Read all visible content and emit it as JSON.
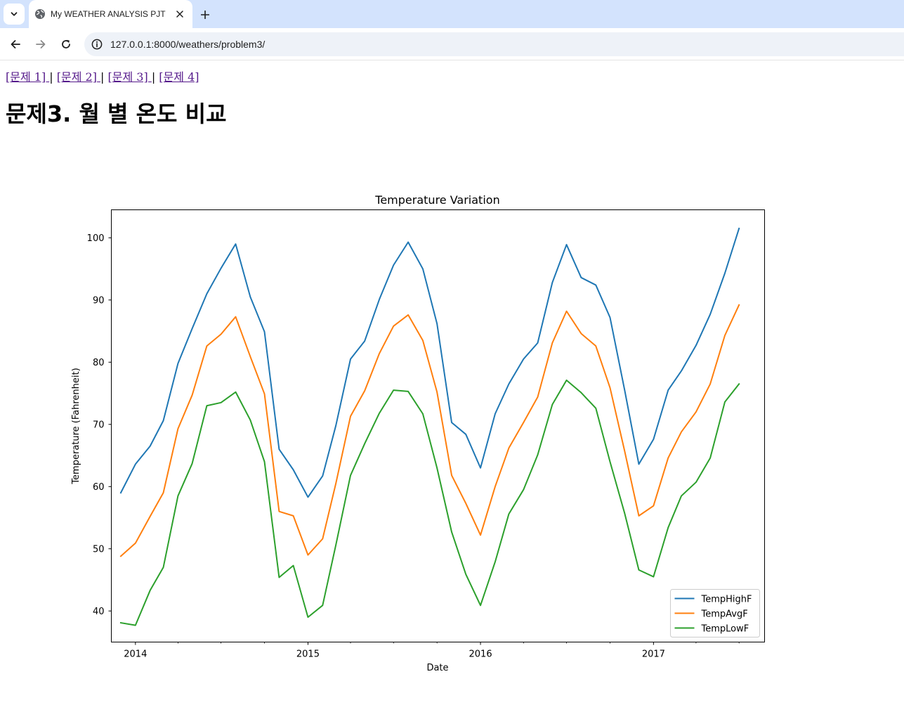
{
  "browser": {
    "tab_title": "My WEATHER ANALYSIS PJT",
    "url": "127.0.0.1:8000/weathers/problem3/",
    "icons": {
      "tab_menu": "chevron-down-icon",
      "favicon": "globe-icon",
      "close": "close-icon",
      "new_tab": "plus-icon",
      "back": "arrow-left-icon",
      "forward": "arrow-right-icon",
      "reload": "reload-icon",
      "site_info": "info-icon"
    }
  },
  "nav": {
    "links": [
      "[문제 1] ",
      "[문제 2] ",
      "[문제 3] ",
      "[문제 4]"
    ],
    "separator": " | "
  },
  "page": {
    "title": "문제3. 월 별 온도 비교"
  },
  "chart_data": {
    "type": "line",
    "title": "Temperature Variation",
    "xlabel": "Date",
    "ylabel": "Temperature (Fahrenheit)",
    "ylim": [
      35,
      104.5
    ],
    "yticks": [
      40,
      50,
      60,
      70,
      80,
      90,
      100
    ],
    "xlim": [
      "2013-11-11",
      "2017-08-24"
    ],
    "xticks": [
      "2014-01-01",
      "2015-01-01",
      "2016-01-01",
      "2017-01-01"
    ],
    "xtick_labels": [
      "2014",
      "2015",
      "2016",
      "2017"
    ],
    "legend": "lower-right",
    "grid": false,
    "x": [
      "2013-12-01",
      "2014-01-01",
      "2014-02-01",
      "2014-03-01",
      "2014-04-01",
      "2014-05-01",
      "2014-06-01",
      "2014-07-01",
      "2014-08-01",
      "2014-09-01",
      "2014-10-01",
      "2014-11-01",
      "2014-12-01",
      "2015-01-01",
      "2015-02-01",
      "2015-03-01",
      "2015-04-01",
      "2015-05-01",
      "2015-06-01",
      "2015-07-01",
      "2015-08-01",
      "2015-09-01",
      "2015-10-01",
      "2015-11-01",
      "2015-12-01",
      "2016-01-01",
      "2016-02-01",
      "2016-03-01",
      "2016-04-01",
      "2016-05-01",
      "2016-06-01",
      "2016-07-01",
      "2016-08-01",
      "2016-09-01",
      "2016-10-01",
      "2016-11-01",
      "2016-12-01",
      "2017-01-01",
      "2017-02-01",
      "2017-03-01",
      "2017-04-01",
      "2017-05-01",
      "2017-06-01",
      "2017-07-01"
    ],
    "series": [
      {
        "name": "TempHighF",
        "color": "#1f77b4",
        "values": [
          59.0,
          63.6,
          66.5,
          70.6,
          79.8,
          85.4,
          91.0,
          95.1,
          99.0,
          90.5,
          84.9,
          66.0,
          62.7,
          58.3,
          61.7,
          69.8,
          80.5,
          83.4,
          90.1,
          95.6,
          99.3,
          95.0,
          86.2,
          70.3,
          68.4,
          63.0,
          71.7,
          76.5,
          80.5,
          83.1,
          92.8,
          98.9,
          93.6,
          92.4,
          87.2,
          75.5,
          63.6,
          67.6,
          75.5,
          78.6,
          82.7,
          87.7,
          94.3,
          101.5
        ]
      },
      {
        "name": "TempAvgF",
        "color": "#ff7f0e",
        "values": [
          48.8,
          50.9,
          55.2,
          59.0,
          69.3,
          74.7,
          82.6,
          84.5,
          87.3,
          80.9,
          74.9,
          56.0,
          55.3,
          49.0,
          51.6,
          60.5,
          71.3,
          75.4,
          81.4,
          85.8,
          87.6,
          83.5,
          75.2,
          61.8,
          57.3,
          52.2,
          60.0,
          66.2,
          70.3,
          74.4,
          83.1,
          88.2,
          84.6,
          82.6,
          75.9,
          65.7,
          55.3,
          56.9,
          64.6,
          68.8,
          72.0,
          76.5,
          84.3,
          89.2
        ]
      },
      {
        "name": "TempLowF",
        "color": "#2ca02c",
        "values": [
          38.1,
          37.7,
          43.3,
          47.0,
          58.5,
          63.7,
          73.0,
          73.5,
          75.2,
          70.7,
          64.0,
          45.4,
          47.3,
          39.0,
          40.9,
          50.6,
          61.8,
          66.9,
          71.8,
          75.5,
          75.3,
          71.7,
          63.0,
          52.7,
          45.9,
          40.9,
          47.9,
          55.6,
          59.5,
          65.1,
          73.2,
          77.1,
          75.1,
          72.6,
          64.0,
          55.7,
          46.6,
          45.5,
          53.4,
          58.5,
          60.7,
          64.6,
          73.6,
          76.5
        ]
      }
    ]
  }
}
